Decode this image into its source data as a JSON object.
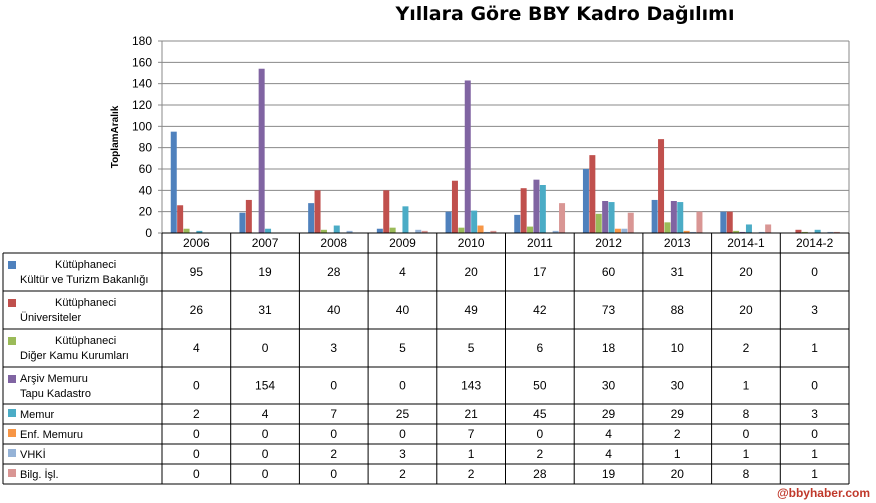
{
  "chart_data": {
    "type": "bar",
    "title": "Yıllara Göre BBY Kadro Dağılımı",
    "ylabel": "ToplamAralık",
    "xlabel": "",
    "ylim": [
      0,
      180
    ],
    "yticks": [
      0,
      20,
      40,
      60,
      80,
      100,
      120,
      140,
      160,
      180
    ],
    "grid": true,
    "legend": "data-table-below",
    "categories": [
      "2006",
      "2007",
      "2008",
      "2009",
      "2010",
      "2011",
      "2012",
      "2013",
      "2014-1",
      "2014-2"
    ],
    "series": [
      {
        "name": [
          "Kütüphaneci",
          "Kültür ve Turizm Bakanlığı"
        ],
        "color": "#4f81bd",
        "values": [
          95,
          19,
          28,
          4,
          20,
          17,
          60,
          31,
          20,
          0
        ]
      },
      {
        "name": [
          "Kütüphaneci",
          "Üniversiteler"
        ],
        "color": "#c0504d",
        "values": [
          26,
          31,
          40,
          40,
          49,
          42,
          73,
          88,
          20,
          3
        ]
      },
      {
        "name": [
          "Kütüphaneci",
          "Diğer Kamu Kurumları"
        ],
        "color": "#9bbb59",
        "values": [
          4,
          0,
          3,
          5,
          5,
          6,
          18,
          10,
          2,
          1
        ]
      },
      {
        "name": [
          "Arşiv Memuru",
          "Tapu Kadastro"
        ],
        "color": "#8064a2",
        "values": [
          0,
          154,
          0,
          0,
          143,
          50,
          30,
          30,
          1,
          0
        ]
      },
      {
        "name": [
          "Memur"
        ],
        "color": "#4bacc6",
        "values": [
          2,
          4,
          7,
          25,
          21,
          45,
          29,
          29,
          8,
          3
        ]
      },
      {
        "name": [
          "Enf. Memuru"
        ],
        "color": "#f79646",
        "values": [
          0,
          0,
          0,
          0,
          7,
          0,
          4,
          2,
          0,
          0
        ]
      },
      {
        "name": [
          "VHKİ"
        ],
        "color": "#95b3d7",
        "values": [
          0,
          0,
          2,
          3,
          1,
          2,
          4,
          1,
          1,
          1
        ]
      },
      {
        "name": [
          "Bilg. İşl."
        ],
        "color": "#d99694",
        "values": [
          0,
          0,
          0,
          2,
          2,
          28,
          19,
          20,
          8,
          1
        ]
      }
    ]
  },
  "watermark": "@bbyhaber.com"
}
